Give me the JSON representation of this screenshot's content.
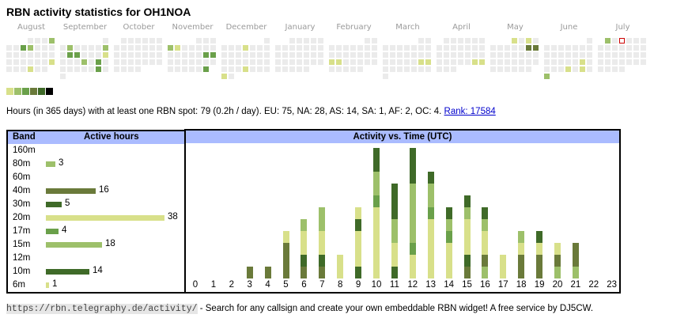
{
  "title": "RBN activity statistics for OH1NOA",
  "colors": {
    "empty": "#ebebeb",
    "levels": [
      "#d8e08a",
      "#9dc06a",
      "#6aa04a",
      "#6a7a3a",
      "#3f6a28",
      "#000000"
    ],
    "header_bg": "#aabbff",
    "today_outline": "#cc0000",
    "link": "#0000cc"
  },
  "calendar": {
    "months": [
      {
        "name": "August",
        "first_weekday": 3,
        "days": 31,
        "active": {
          "4": 2,
          "7": 3,
          "8": 2,
          "25": 1,
          "29": 1
        }
      },
      {
        "name": "September",
        "first_weekday": 6,
        "days": 30,
        "active": {
          "3": 2,
          "8": 2,
          "10": 3,
          "11": 3,
          "15": 1,
          "19": 2,
          "21": 3,
          "28": 3
        }
      },
      {
        "name": "October",
        "first_weekday": 1,
        "days": 31,
        "active": {}
      },
      {
        "name": "November",
        "first_weekday": 4,
        "days": 30,
        "active": {
          "4": 2,
          "5": 1,
          "16": 3,
          "17": 3,
          "30": 3
        }
      },
      {
        "name": "December",
        "first_weekday": 6,
        "days": 31,
        "active": {
          "5": 1,
          "26": 1,
          "30": 1
        }
      },
      {
        "name": "January",
        "first_weekday": 2,
        "days": 31,
        "active": {}
      },
      {
        "name": "February",
        "first_weekday": 5,
        "days": 28,
        "active": {
          "17": 1,
          "18": 1
        }
      },
      {
        "name": "March",
        "first_weekday": 5,
        "days": 31,
        "active": {
          "22": 1,
          "23": 1
        }
      },
      {
        "name": "April",
        "first_weekday": 1,
        "days": 30,
        "active": {
          "26": 1,
          "27": 1
        }
      },
      {
        "name": "May",
        "first_weekday": 3,
        "days": 31,
        "active": {
          "1": 1,
          "3": 1,
          "10": 4,
          "11": 4
        }
      },
      {
        "name": "June",
        "first_weekday": 6,
        "days": 30,
        "active": {
          "21": 1,
          "26": 1,
          "28": 1,
          "30": 2
        }
      },
      {
        "name": "July",
        "first_weekday": 1,
        "days": 31,
        "active": {
          "1": 2
        },
        "today": 3
      }
    ],
    "legend_levels": 6
  },
  "summary": {
    "text": "Hours (in 365 days) with at least one RBN spot: 79 (0.2h / day). EU: 75, NA: 28, AS: 14, SA: 1, AF: 2, OC: 4. ",
    "rank_link": "Rank: 17584"
  },
  "bands": {
    "header_band": "Band",
    "header_hours": "Active hours",
    "max_hours": 38,
    "rows": [
      {
        "band": "160m",
        "hours": null,
        "color": "#9dc06a"
      },
      {
        "band": "80m",
        "hours": 3,
        "color": "#9dc06a"
      },
      {
        "band": "60m",
        "hours": null,
        "color": "#9dc06a"
      },
      {
        "band": "40m",
        "hours": 16,
        "color": "#6a7a3a"
      },
      {
        "band": "30m",
        "hours": 5,
        "color": "#3f6a28"
      },
      {
        "band": "20m",
        "hours": 38,
        "color": "#d8e08a"
      },
      {
        "band": "17m",
        "hours": 4,
        "color": "#6aa04a"
      },
      {
        "band": "15m",
        "hours": 18,
        "color": "#9dc06a"
      },
      {
        "band": "12m",
        "hours": null,
        "color": "#9dc06a"
      },
      {
        "band": "10m",
        "hours": 14,
        "color": "#3f6a28"
      },
      {
        "band": "6m",
        "hours": 1,
        "color": "#d8e08a"
      }
    ]
  },
  "chart_data": {
    "type": "bar",
    "stacked": true,
    "title": "Activity vs. Time (UTC)",
    "xlabel": "",
    "ylabel": "",
    "categories": [
      "0",
      "1",
      "2",
      "3",
      "4",
      "5",
      "6",
      "7",
      "8",
      "9",
      "10",
      "11",
      "12",
      "13",
      "14",
      "15",
      "16",
      "17",
      "18",
      "19",
      "20",
      "21",
      "22",
      "23"
    ],
    "ylim": [
      0,
      11
    ],
    "segment_colors": {
      "Y": "#d8e08a",
      "L": "#9dc06a",
      "M": "#6aa04a",
      "O": "#6a7a3a",
      "D": "#3f6a28"
    },
    "stacks": [
      [],
      [],
      [],
      [
        "O"
      ],
      [
        "O"
      ],
      [
        "O",
        "O",
        "O",
        "Y"
      ],
      [
        "O",
        "D",
        "Y",
        "Y",
        "L"
      ],
      [
        "O",
        "D",
        "Y",
        "Y",
        "L",
        "L"
      ],
      [
        "Y",
        "Y"
      ],
      [
        "D",
        "Y",
        "Y",
        "Y",
        "D",
        "Y"
      ],
      [
        "Y",
        "Y",
        "Y",
        "Y",
        "Y",
        "Y",
        "M",
        "L",
        "L",
        "D",
        "D"
      ],
      [
        "D",
        "Y",
        "Y",
        "L",
        "L",
        "D",
        "D",
        "D"
      ],
      [
        "Y",
        "Y",
        "M",
        "L",
        "L",
        "L",
        "L",
        "L",
        "D",
        "D",
        "D"
      ],
      [
        "Y",
        "Y",
        "Y",
        "Y",
        "Y",
        "M",
        "L",
        "L",
        "D"
      ],
      [
        "Y",
        "Y",
        "Y",
        "M",
        "L",
        "D"
      ],
      [
        "O",
        "D",
        "Y",
        "Y",
        "Y",
        "L",
        "D"
      ],
      [
        "L",
        "O",
        "Y",
        "Y",
        "L",
        "D"
      ],
      [
        "Y",
        "Y"
      ],
      [
        "O",
        "O",
        "Y",
        "L"
      ],
      [
        "O",
        "O",
        "Y",
        "D"
      ],
      [
        "L",
        "O",
        "Y"
      ],
      [
        "L",
        "O",
        "O"
      ],
      [],
      []
    ],
    "values": [
      0,
      0,
      0,
      1,
      1,
      4,
      5,
      6,
      2,
      6,
      11,
      8,
      11,
      9,
      6,
      7,
      6,
      2,
      4,
      4,
      3,
      3,
      0,
      0
    ]
  },
  "footer": {
    "url": "https://rbn.telegraphy.de/activity/",
    "text": " - Search for any callsign and create your own embeddable RBN widget! A free service by DJ5CW."
  }
}
